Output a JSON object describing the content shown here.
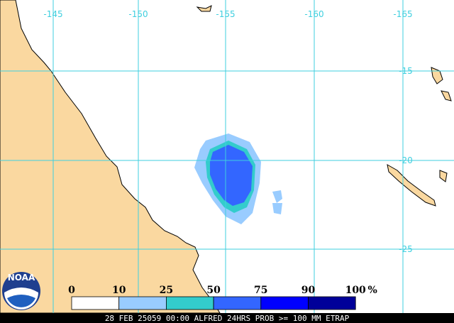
{
  "map": {
    "lon_labels": [
      "-145",
      "-150",
      "-155",
      "-160",
      "-165"
    ],
    "lat_labels": [
      "-15",
      "-20",
      "-25"
    ],
    "grid_color": "#3fcfdf",
    "land_color": "#fad8a0"
  },
  "legend": {
    "ticks": [
      "0",
      "10",
      "25",
      "50",
      "75",
      "90",
      "100"
    ],
    "unit": "%",
    "colors": [
      "#ffffff",
      "#99ccff",
      "#33cccc",
      "#3366ff",
      "#0000ff",
      "#000099"
    ]
  },
  "logo": {
    "text": "NOAA"
  },
  "footer": {
    "text": "28 FEB 25059 00:00 ALFRED 24HRS PROB >= 100 MM ETRAP"
  }
}
